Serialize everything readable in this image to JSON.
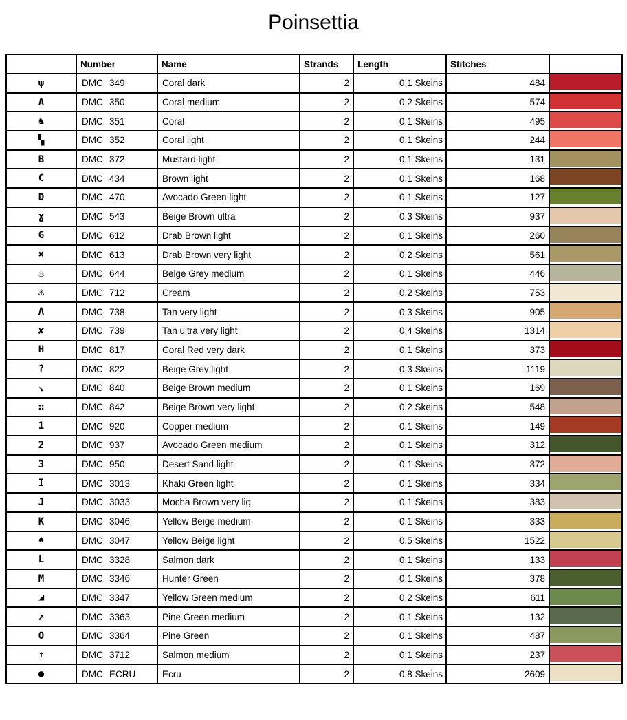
{
  "page": {
    "title": "Poinsettia"
  },
  "table": {
    "headers": {
      "symbol": "",
      "number": "Number",
      "name": "Name",
      "strands": "Strands",
      "length": "Length",
      "stitches": "Stitches",
      "color": ""
    },
    "rows": [
      {
        "symbol": "ψ",
        "brand": "DMC",
        "number": "349",
        "name": "Coral dark",
        "strands": "2",
        "length": "0.1 Skeins",
        "stitches": "484",
        "color": "#B91D2C"
      },
      {
        "symbol": "A",
        "brand": "DMC",
        "number": "350",
        "name": "Coral medium",
        "strands": "2",
        "length": "0.2 Skeins",
        "stitches": "574",
        "color": "#D13233"
      },
      {
        "symbol": "♞",
        "brand": "DMC",
        "number": "351",
        "name": "Coral",
        "strands": "2",
        "length": "0.1 Skeins",
        "stitches": "495",
        "color": "#DD4A47"
      },
      {
        "symbol": "▚",
        "brand": "DMC",
        "number": "352",
        "name": "Coral light",
        "strands": "2",
        "length": "0.1 Skeins",
        "stitches": "244",
        "color": "#F17565"
      },
      {
        "symbol": "B",
        "brand": "DMC",
        "number": "372",
        "name": "Mustard light",
        "strands": "2",
        "length": "0.1 Skeins",
        "stitches": "131",
        "color": "#A3925F"
      },
      {
        "symbol": "C",
        "brand": "DMC",
        "number": "434",
        "name": "Brown light",
        "strands": "2",
        "length": "0.1 Skeins",
        "stitches": "168",
        "color": "#7D4423"
      },
      {
        "symbol": "D",
        "brand": "DMC",
        "number": "470",
        "name": "Avocado Green light",
        "strands": "2",
        "length": "0.1 Skeins",
        "stitches": "127",
        "color": "#66802C"
      },
      {
        "symbol": "ɣ",
        "brand": "DMC",
        "number": "543",
        "name": "Beige Brown ultra",
        "strands": "2",
        "length": "0.3 Skeins",
        "stitches": "937",
        "color": "#E5C7AC"
      },
      {
        "symbol": "G",
        "brand": "DMC",
        "number": "612",
        "name": "Drab Brown light",
        "strands": "2",
        "length": "0.1 Skeins",
        "stitches": "260",
        "color": "#97845B"
      },
      {
        "symbol": "✖",
        "brand": "DMC",
        "number": "613",
        "name": "Drab Brown very light",
        "strands": "2",
        "length": "0.2 Skeins",
        "stitches": "561",
        "color": "#AB9868"
      },
      {
        "symbol": "♨",
        "brand": "DMC",
        "number": "644",
        "name": "Beige Grey medium",
        "strands": "2",
        "length": "0.1 Skeins",
        "stitches": "446",
        "color": "#B8B49B"
      },
      {
        "symbol": "⚓",
        "brand": "DMC",
        "number": "712",
        "name": "Cream",
        "strands": "2",
        "length": "0.2 Skeins",
        "stitches": "753",
        "color": "#F2E8D2"
      },
      {
        "symbol": "Λ",
        "brand": "DMC",
        "number": "738",
        "name": "Tan very light",
        "strands": "2",
        "length": "0.3 Skeins",
        "stitches": "905",
        "color": "#D5A771"
      },
      {
        "symbol": "✘",
        "brand": "DMC",
        "number": "739",
        "name": "Tan ultra very light",
        "strands": "2",
        "length": "0.4 Skeins",
        "stitches": "1314",
        "color": "#EFCFA5"
      },
      {
        "symbol": "H",
        "brand": "DMC",
        "number": "817",
        "name": "Coral Red very dark",
        "strands": "2",
        "length": "0.1 Skeins",
        "stitches": "373",
        "color": "#A30C19"
      },
      {
        "symbol": "?",
        "brand": "DMC",
        "number": "822",
        "name": "Beige Grey light",
        "strands": "2",
        "length": "0.3 Skeins",
        "stitches": "1119",
        "color": "#DDD8BC"
      },
      {
        "symbol": "↘",
        "brand": "DMC",
        "number": "840",
        "name": "Beige Brown medium",
        "strands": "2",
        "length": "0.1 Skeins",
        "stitches": "169",
        "color": "#7C5F4C"
      },
      {
        "symbol": "∷",
        "brand": "DMC",
        "number": "842",
        "name": "Beige Brown very light",
        "strands": "2",
        "length": "0.2 Skeins",
        "stitches": "548",
        "color": "#C2A18D"
      },
      {
        "symbol": "1",
        "brand": "DMC",
        "number": "920",
        "name": "Copper medium",
        "strands": "2",
        "length": "0.1 Skeins",
        "stitches": "149",
        "color": "#A43A24"
      },
      {
        "symbol": "2",
        "brand": "DMC",
        "number": "937",
        "name": "Avocado Green medium",
        "strands": "2",
        "length": "0.1 Skeins",
        "stitches": "312",
        "color": "#43552A"
      },
      {
        "symbol": "3",
        "brand": "DMC",
        "number": "950",
        "name": "Desert Sand light",
        "strands": "2",
        "length": "0.1 Skeins",
        "stitches": "372",
        "color": "#E0AB97"
      },
      {
        "symbol": "I",
        "brand": "DMC",
        "number": "3013",
        "name": "Khaki Green light",
        "strands": "2",
        "length": "0.1 Skeins",
        "stitches": "334",
        "color": "#9EA46D"
      },
      {
        "symbol": "J",
        "brand": "DMC",
        "number": "3033",
        "name": "Mocha Brown very lig",
        "strands": "2",
        "length": "0.1 Skeins",
        "stitches": "383",
        "color": "#D0C2AE"
      },
      {
        "symbol": "K",
        "brand": "DMC",
        "number": "3046",
        "name": "Yellow Beige medium",
        "strands": "2",
        "length": "0.1 Skeins",
        "stitches": "333",
        "color": "#C9AC5E"
      },
      {
        "symbol": "♠",
        "brand": "DMC",
        "number": "3047",
        "name": "Yellow Beige light",
        "strands": "2",
        "length": "0.5 Skeins",
        "stitches": "1522",
        "color": "#D8C98E"
      },
      {
        "symbol": "L",
        "brand": "DMC",
        "number": "3328",
        "name": "Salmon dark",
        "strands": "2",
        "length": "0.1 Skeins",
        "stitches": "133",
        "color": "#C24150"
      },
      {
        "symbol": "M",
        "brand": "DMC",
        "number": "3346",
        "name": "Hunter Green",
        "strands": "2",
        "length": "0.1 Skeins",
        "stitches": "378",
        "color": "#4A5F2D"
      },
      {
        "symbol": "◢",
        "brand": "DMC",
        "number": "3347",
        "name": "Yellow Green medium",
        "strands": "2",
        "length": "0.2 Skeins",
        "stitches": "611",
        "color": "#6C8A4C"
      },
      {
        "symbol": "↗",
        "brand": "DMC",
        "number": "3363",
        "name": "Pine Green medium",
        "strands": "2",
        "length": "0.1 Skeins",
        "stitches": "132",
        "color": "#5A6B4C"
      },
      {
        "symbol": "O",
        "brand": "DMC",
        "number": "3364",
        "name": "Pine Green",
        "strands": "2",
        "length": "0.1 Skeins",
        "stitches": "487",
        "color": "#8A9A5F"
      },
      {
        "symbol": "↑",
        "brand": "DMC",
        "number": "3712",
        "name": "Salmon medium",
        "strands": "2",
        "length": "0.1 Skeins",
        "stitches": "237",
        "color": "#CC5059"
      },
      {
        "symbol": "●",
        "brand": "DMC",
        "number": "ECRU",
        "name": "Ecru",
        "strands": "2",
        "length": "0.8 Skeins",
        "stitches": "2609",
        "color": "#EBDFC4"
      }
    ]
  }
}
